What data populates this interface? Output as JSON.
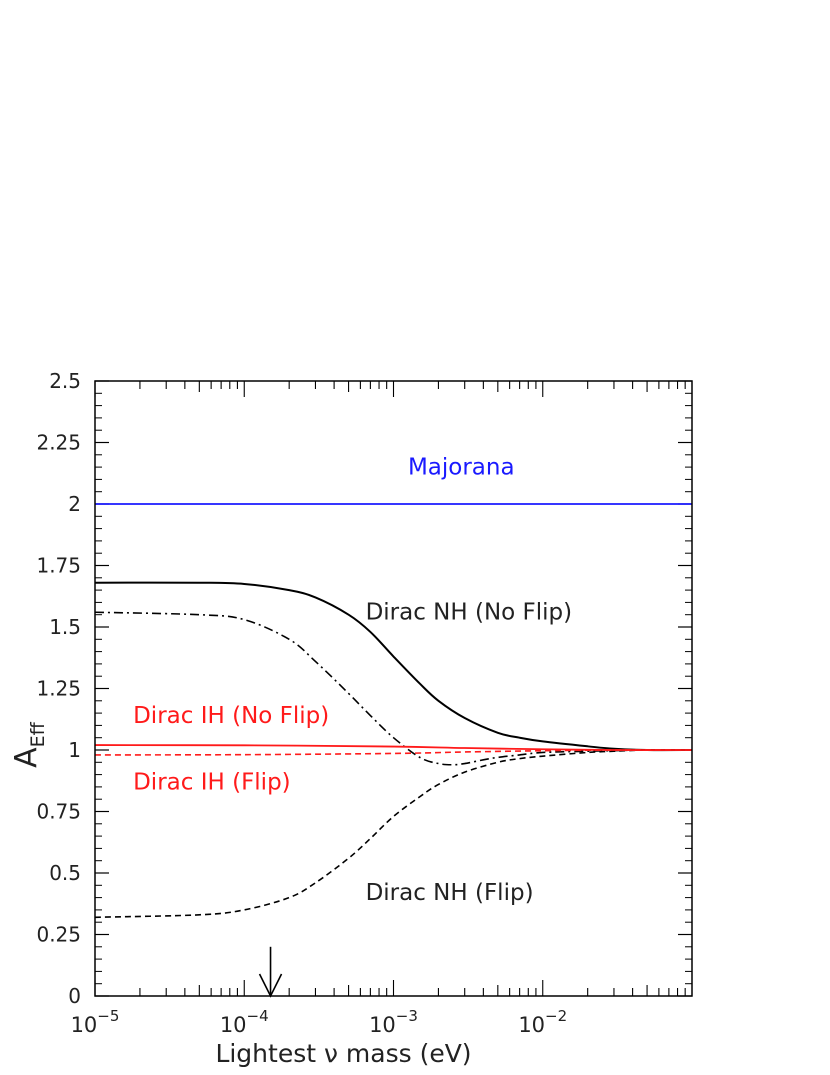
{
  "chart_data": {
    "type": "line",
    "title": "",
    "xlabel": "Lightest ν mass (eV)",
    "ylabel": "A",
    "ylabel_subscript": "Eff",
    "x_scale": "log",
    "xlim": [
      1e-05,
      0.1
    ],
    "ylim": [
      0,
      2.5
    ],
    "grid": false,
    "legend": "none",
    "x_ticks": [
      {
        "value": 1e-05,
        "base": "10",
        "exp": "−5"
      },
      {
        "value": 0.0001,
        "base": "10",
        "exp": "−4"
      },
      {
        "value": 0.001,
        "base": "10",
        "exp": "−3"
      },
      {
        "value": 0.01,
        "base": "10",
        "exp": "−2"
      }
    ],
    "y_ticks": [
      {
        "value": 0,
        "label": "0"
      },
      {
        "value": 0.25,
        "label": "0.25"
      },
      {
        "value": 0.5,
        "label": "0.5"
      },
      {
        "value": 0.75,
        "label": "0.75"
      },
      {
        "value": 1,
        "label": "1"
      },
      {
        "value": 1.25,
        "label": "1.25"
      },
      {
        "value": 1.5,
        "label": "1.5"
      },
      {
        "value": 1.75,
        "label": "1.75"
      },
      {
        "value": 2,
        "label": "2"
      },
      {
        "value": 2.25,
        "label": "2.25"
      },
      {
        "value": 2.5,
        "label": "2.5"
      }
    ],
    "series": [
      {
        "name": "Majorana",
        "color": "#1a1aff",
        "dash": "solid",
        "width": 1.8,
        "x": [
          1e-05,
          0.1
        ],
        "y": [
          2.0,
          2.0
        ]
      },
      {
        "name": "Dirac NH (No Flip)",
        "color": "#000000",
        "dash": "solid",
        "width": 2,
        "x": [
          1e-05,
          5e-05,
          0.0001,
          0.0002,
          0.0003,
          0.0005,
          0.0007,
          0.001,
          0.0015,
          0.002,
          0.003,
          0.005,
          0.007,
          0.01,
          0.02,
          0.03,
          0.05,
          0.1
        ],
        "y": [
          1.68,
          1.68,
          1.675,
          1.65,
          1.62,
          1.55,
          1.48,
          1.38,
          1.27,
          1.2,
          1.13,
          1.07,
          1.05,
          1.035,
          1.015,
          1.005,
          1.0,
          1.0
        ]
      },
      {
        "name": "",
        "color": "#000000",
        "dash": "dashdot",
        "width": 1.6,
        "x": [
          1e-05,
          5e-05,
          0.0001,
          0.0002,
          0.0003,
          0.0005,
          0.0007,
          0.001,
          0.0015,
          0.002,
          0.0025,
          0.003,
          0.004,
          0.005,
          0.007,
          0.01,
          0.02,
          0.05,
          0.1
        ],
        "y": [
          1.56,
          1.55,
          1.53,
          1.45,
          1.36,
          1.23,
          1.14,
          1.05,
          0.97,
          0.945,
          0.94,
          0.945,
          0.96,
          0.97,
          0.98,
          0.99,
          0.995,
          1.0,
          1.0
        ]
      },
      {
        "name": "Dirac NH (Flip)",
        "color": "#000000",
        "dash": "dashed",
        "width": 1.6,
        "x": [
          1e-05,
          5e-05,
          0.0001,
          0.0002,
          0.0003,
          0.0005,
          0.0007,
          0.001,
          0.0015,
          0.002,
          0.003,
          0.005,
          0.007,
          0.01,
          0.02,
          0.03,
          0.05,
          0.1
        ],
        "y": [
          0.32,
          0.33,
          0.35,
          0.4,
          0.46,
          0.56,
          0.64,
          0.73,
          0.81,
          0.86,
          0.91,
          0.95,
          0.965,
          0.975,
          0.99,
          0.995,
          1.0,
          1.0
        ]
      },
      {
        "name": "Dirac IH (No Flip)",
        "color": "#ff1a1a",
        "dash": "solid",
        "width": 1.8,
        "x": [
          1e-05,
          0.0001,
          0.001,
          0.003,
          0.01,
          0.03,
          0.1
        ],
        "y": [
          1.02,
          1.019,
          1.014,
          1.008,
          1.003,
          1.0,
          1.0
        ]
      },
      {
        "name": "Dirac IH (Flip)",
        "color": "#ff1a1a",
        "dash": "dashed",
        "width": 1.6,
        "x": [
          1e-05,
          0.0001,
          0.001,
          0.003,
          0.01,
          0.03,
          0.1
        ],
        "y": [
          0.98,
          0.981,
          0.986,
          0.992,
          0.997,
          1.0,
          1.0
        ]
      }
    ],
    "annotations": [
      {
        "text": "Majorana",
        "color": "#1a1aff",
        "x": 0.00125,
        "y": 2.12
      },
      {
        "text": "Dirac NH (No Flip)",
        "color": "#222222",
        "x": 0.00065,
        "y": 1.53
      },
      {
        "text": "Dirac IH (No Flip)",
        "color": "#ff1a1a",
        "x": 1.8e-05,
        "y": 1.11
      },
      {
        "text": "Dirac IH (Flip)",
        "color": "#ff1a1a",
        "x": 1.8e-05,
        "y": 0.84
      },
      {
        "text": "Dirac NH (Flip)",
        "color": "#222222",
        "x": 0.00065,
        "y": 0.39
      }
    ],
    "marker_arrow": {
      "x": 0.00015,
      "y_from": 0.2,
      "y_to": 0.0
    }
  }
}
